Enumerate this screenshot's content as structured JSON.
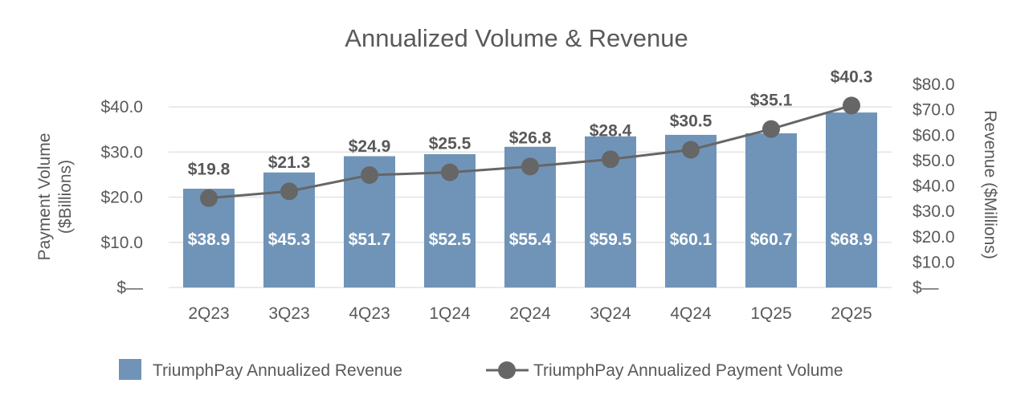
{
  "chart_data": {
    "type": "bar+line",
    "title": "Annualized Volume & Revenue",
    "categories": [
      "2Q23",
      "3Q23",
      "4Q23",
      "1Q24",
      "2Q24",
      "3Q24",
      "4Q24",
      "1Q25",
      "2Q25"
    ],
    "series": [
      {
        "name": "TriumphPay Annualized Revenue",
        "type": "bar",
        "axis": "right",
        "values": [
          38.9,
          45.3,
          51.7,
          52.5,
          55.4,
          59.5,
          60.1,
          60.7,
          68.9
        ],
        "labels": [
          "$38.9",
          "$45.3",
          "$51.7",
          "$52.5",
          "$55.4",
          "$59.5",
          "$60.1",
          "$60.7",
          "$68.9"
        ],
        "color": "#7094b8"
      },
      {
        "name": "TriumphPay Annualized Payment Volume",
        "type": "line",
        "axis": "left",
        "values": [
          19.8,
          21.3,
          24.9,
          25.5,
          26.8,
          28.4,
          30.5,
          35.1,
          40.3
        ],
        "labels": [
          "$19.8",
          "$21.3",
          "$24.9",
          "$25.5",
          "$26.8",
          "$28.4",
          "$30.5",
          "$35.1",
          "$40.3"
        ],
        "color": "#666666"
      }
    ],
    "ylabel_left": [
      "Payment Volume",
      "($Billions)"
    ],
    "ylabel_right": "Revenue ($Millions)",
    "ylim_left": [
      0,
      45
    ],
    "ylim_right": [
      0,
      80
    ],
    "left_ticks": {
      "values": [
        0,
        10,
        20,
        30,
        40
      ],
      "labels": [
        "$—",
        "$10.0",
        "$20.0",
        "$30.0",
        "$40.0"
      ]
    },
    "right_ticks": {
      "values": [
        0,
        10,
        20,
        30,
        40,
        50,
        60,
        70,
        80
      ],
      "labels": [
        "$—",
        "$10.0",
        "$20.0",
        "$30.0",
        "$40.0",
        "$50.0",
        "$60.0",
        "$70.0",
        "$80.0"
      ]
    },
    "grid": true,
    "legend": "bottom"
  }
}
